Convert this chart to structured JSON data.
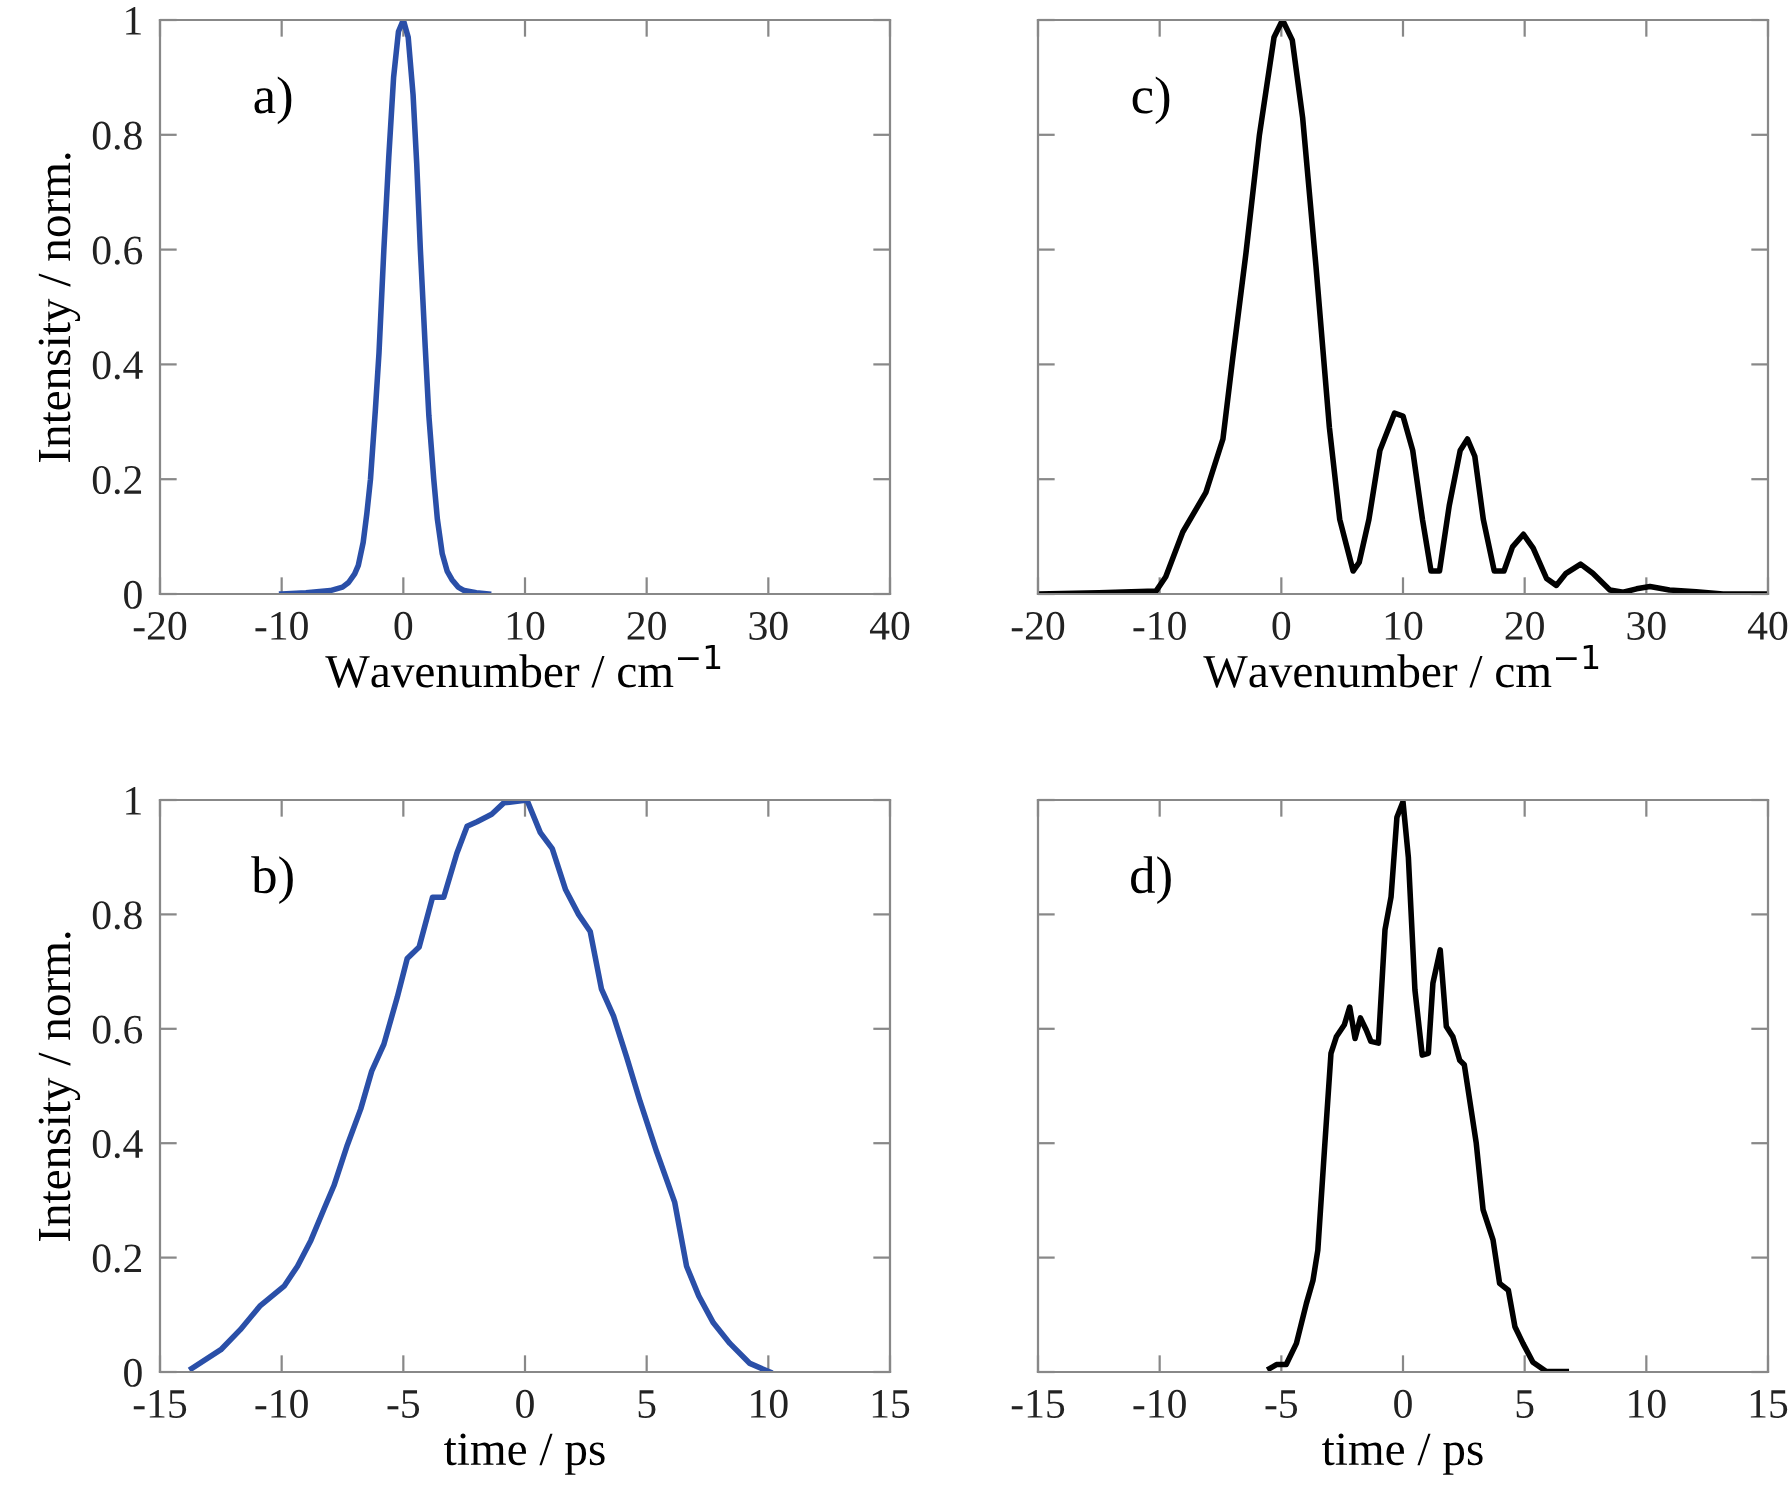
{
  "chart_data": [
    {
      "type": "line",
      "xlabel": "Wavenumber / cm$^{−1}$",
      "ylabel": "Intensity / norm.",
      "annotations": [
        "a)"
      ],
      "xlim": [
        -20,
        40
      ],
      "xticks": [
        -20,
        -10,
        0,
        10,
        20,
        30,
        40
      ],
      "ylim": [
        0,
        1
      ],
      "yticks": [
        0,
        0.2,
        0.4,
        0.6,
        0.8,
        1
      ],
      "series": [
        {
          "color": "#2a4fa8",
          "x": [
            -10,
            -8,
            -6,
            -5,
            -4.5,
            -4,
            -3.7,
            -3.3,
            -3,
            -2.7,
            -2.3,
            -2,
            -1.6,
            -1.2,
            -0.8,
            -0.4,
            0,
            0.4,
            0.8,
            1.1,
            1.4,
            1.8,
            2.1,
            2.5,
            2.8,
            3.2,
            3.6,
            4,
            4.5,
            5,
            6,
            7
          ],
          "values": [
            0,
            0.002,
            0.006,
            0.012,
            0.02,
            0.035,
            0.05,
            0.09,
            0.14,
            0.2,
            0.32,
            0.42,
            0.6,
            0.76,
            0.9,
            0.98,
            1,
            0.97,
            0.87,
            0.75,
            0.6,
            0.43,
            0.31,
            0.2,
            0.13,
            0.07,
            0.04,
            0.025,
            0.012,
            0.006,
            0.002,
            0
          ]
        }
      ]
    },
    {
      "type": "line",
      "xlabel": "Wavenumber / cm$^{−1}$",
      "annotations": [
        "c)"
      ],
      "xlim": [
        -20,
        40
      ],
      "xticks": [
        -20,
        -10,
        0,
        10,
        20,
        30,
        40
      ],
      "ylim": [
        0,
        1
      ],
      "yticks": [
        0,
        0.2,
        0.4,
        0.6,
        0.8,
        1
      ],
      "tick_labels": "x",
      "series": [
        {
          "color": "#000000",
          "x": [
            -20,
            -15,
            -10.3,
            -9.5,
            -8.1,
            -6.2,
            -4.8,
            -4.0,
            -2.9,
            -1.8,
            -0.6,
            0.1,
            0.9,
            1.75,
            2.85,
            3.95,
            4.8,
            5.9,
            6.4,
            7.2,
            8.1,
            9.3,
            10.0,
            10.8,
            11.6,
            12.3,
            13.0,
            13.8,
            14.7,
            15.3,
            15.9,
            16.6,
            17.5,
            18.3,
            19.0,
            19.9,
            20.7,
            21.8,
            22.6,
            23.4,
            24.6,
            25.6,
            27.0,
            28.1,
            29.2,
            30.3,
            31.9,
            34.1,
            36.3,
            40
          ],
          "values": [
            0,
            0.002,
            0.005,
            0.03,
            0.108,
            0.177,
            0.27,
            0.41,
            0.595,
            0.8,
            0.97,
            1,
            0.965,
            0.83,
            0.57,
            0.29,
            0.13,
            0.04,
            0.055,
            0.13,
            0.25,
            0.315,
            0.31,
            0.25,
            0.13,
            0.04,
            0.04,
            0.154,
            0.25,
            0.27,
            0.24,
            0.13,
            0.04,
            0.04,
            0.082,
            0.104,
            0.08,
            0.027,
            0.015,
            0.036,
            0.052,
            0.036,
            0.007,
            0.003,
            0.009,
            0.013,
            0.007,
            0.004,
            0,
            0
          ]
        }
      ]
    },
    {
      "type": "line",
      "xlabel": "time / ps",
      "ylabel": "Intensity / norm.",
      "annotations": [
        "b)"
      ],
      "xlim": [
        -15,
        15
      ],
      "xticks": [
        -15,
        -10,
        -5,
        0,
        5,
        10,
        15
      ],
      "ylim": [
        0,
        1
      ],
      "yticks": [
        0,
        0.2,
        0.4,
        0.6,
        0.8,
        1
      ],
      "series": [
        {
          "color": "#2a4fa8",
          "x": [
            -13.7,
            -12.5,
            -11.7,
            -10.9,
            -9.9,
            -9.35,
            -8.8,
            -8.26,
            -7.85,
            -7.3,
            -6.75,
            -6.3,
            -5.8,
            -5.25,
            -4.84,
            -4.35,
            -3.8,
            -3.34,
            -2.8,
            -2.38,
            -1.97,
            -1.37,
            -0.87,
            0.08,
            0.63,
            1.12,
            1.67,
            2.2,
            2.68,
            3.14,
            3.64,
            4.18,
            4.73,
            5.41,
            6.15,
            6.64,
            7.14,
            7.74,
            8.42,
            9.24,
            10.06
          ],
          "values": [
            0.006,
            0.039,
            0.074,
            0.115,
            0.15,
            0.185,
            0.23,
            0.285,
            0.326,
            0.397,
            0.46,
            0.526,
            0.573,
            0.655,
            0.723,
            0.743,
            0.83,
            0.83,
            0.907,
            0.954,
            0.962,
            0.975,
            0.995,
            1.0,
            0.943,
            0.915,
            0.843,
            0.8,
            0.77,
            0.67,
            0.622,
            0.55,
            0.473,
            0.385,
            0.297,
            0.185,
            0.133,
            0.086,
            0.05,
            0.015,
            0
          ]
        }
      ]
    },
    {
      "type": "line",
      "xlabel": "time / ps",
      "annotations": [
        "d)"
      ],
      "xlim": [
        -15,
        15
      ],
      "xticks": [
        -15,
        -10,
        -5,
        0,
        5,
        10,
        15
      ],
      "ylim": [
        0,
        1
      ],
      "yticks": [
        0,
        0.2,
        0.4,
        0.6,
        0.8,
        1
      ],
      "tick_labels": "x",
      "series": [
        {
          "color": "#000000",
          "x": [
            -5.48,
            -5.2,
            -4.8,
            -4.38,
            -3.97,
            -3.7,
            -3.5,
            -3.23,
            -2.96,
            -2.74,
            -2.41,
            -2.19,
            -1.97,
            -1.75,
            -1.51,
            -1.32,
            -1.01,
            -0.74,
            -0.49,
            -0.25,
            0,
            0.22,
            0.49,
            0.79,
            1.04,
            1.23,
            1.53,
            1.78,
            2.05,
            2.33,
            2.52,
            3.01,
            3.29,
            3.7,
            3.97,
            4.33,
            4.6,
            4.93,
            5.34,
            5.89,
            6.71
          ],
          "values": [
            0.006,
            0.013,
            0.013,
            0.05,
            0.12,
            0.16,
            0.213,
            0.387,
            0.557,
            0.586,
            0.607,
            0.638,
            0.583,
            0.619,
            0.598,
            0.578,
            0.575,
            0.773,
            0.831,
            0.97,
            0.997,
            0.9,
            0.668,
            0.554,
            0.557,
            0.68,
            0.738,
            0.604,
            0.586,
            0.545,
            0.537,
            0.4,
            0.284,
            0.231,
            0.155,
            0.143,
            0.079,
            0.05,
            0.017,
            0.001,
            0.001
          ]
        }
      ]
    }
  ]
}
